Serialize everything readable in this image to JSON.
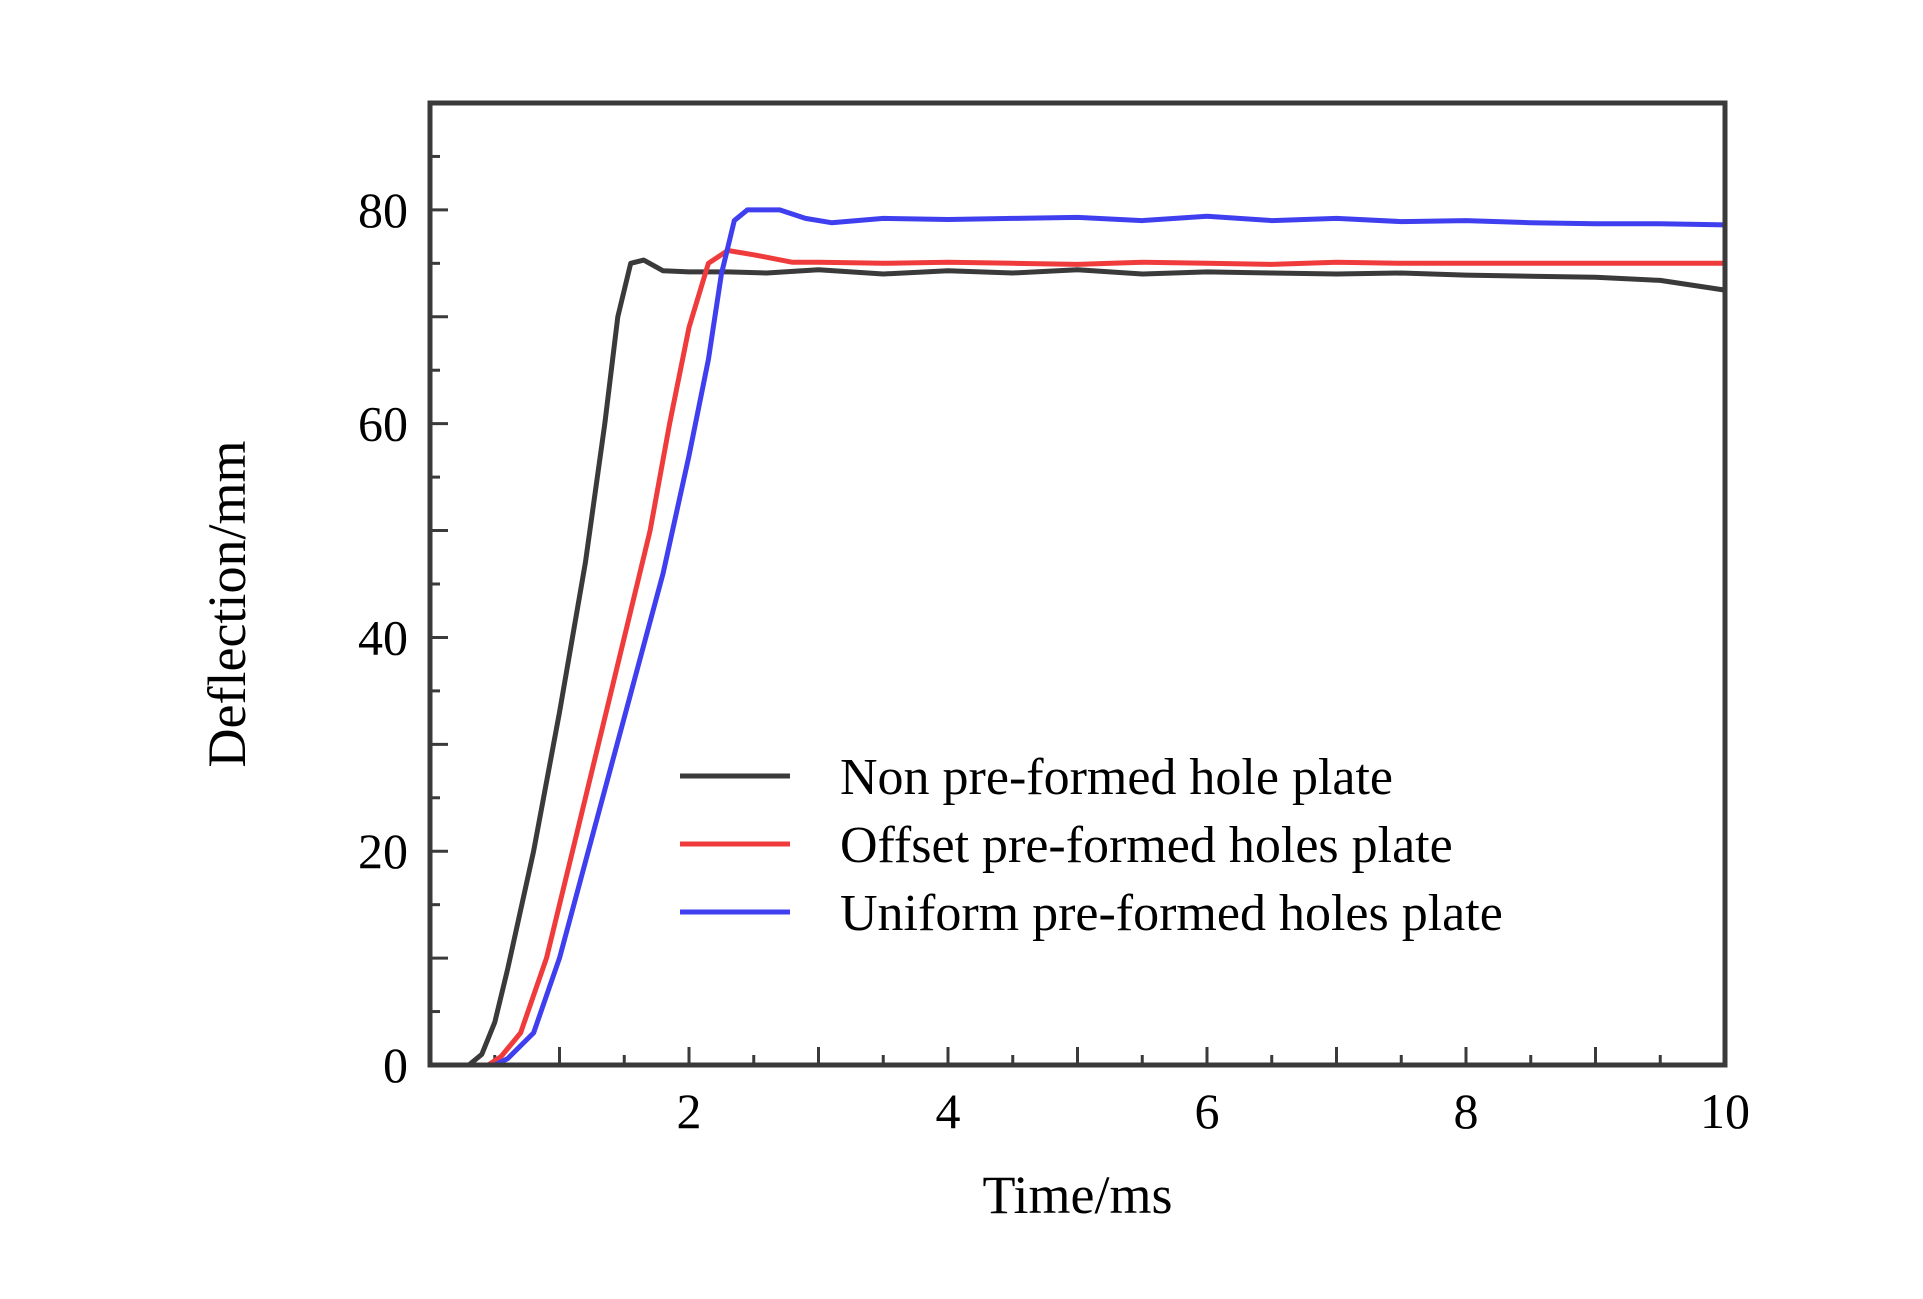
{
  "chart_data": {
    "type": "line",
    "title": "",
    "xlabel": "Time/ms",
    "ylabel": "Deflection/mm",
    "xlim": [
      0,
      10
    ],
    "ylim": [
      0,
      90
    ],
    "x_ticks": [
      2,
      4,
      6,
      8,
      10
    ],
    "y_ticks": [
      0,
      20,
      40,
      60,
      80
    ],
    "grid": false,
    "legend_position": "lower-right",
    "series": [
      {
        "name": "Non pre-formed hole plate",
        "color": "#3a3a3a",
        "points": [
          [
            0,
            0
          ],
          [
            0.3,
            0
          ],
          [
            0.4,
            1
          ],
          [
            0.5,
            4
          ],
          [
            0.6,
            9
          ],
          [
            0.8,
            20
          ],
          [
            1.0,
            33
          ],
          [
            1.2,
            47
          ],
          [
            1.35,
            60
          ],
          [
            1.45,
            70
          ],
          [
            1.55,
            75
          ],
          [
            1.65,
            75.3
          ],
          [
            1.8,
            74.3
          ],
          [
            2.0,
            74.2
          ],
          [
            2.3,
            74.2
          ],
          [
            2.6,
            74.1
          ],
          [
            3.0,
            74.4
          ],
          [
            3.5,
            74.0
          ],
          [
            4.0,
            74.3
          ],
          [
            4.5,
            74.1
          ],
          [
            5.0,
            74.4
          ],
          [
            5.5,
            74.0
          ],
          [
            6.0,
            74.2
          ],
          [
            6.5,
            74.1
          ],
          [
            7.0,
            74.0
          ],
          [
            7.5,
            74.1
          ],
          [
            8.0,
            73.9
          ],
          [
            8.5,
            73.8
          ],
          [
            9.0,
            73.7
          ],
          [
            9.5,
            73.4
          ],
          [
            10.0,
            72.5
          ]
        ]
      },
      {
        "name": "Offset pre-formed holes plate",
        "color": "#ef3b3b",
        "points": [
          [
            0,
            0
          ],
          [
            0.45,
            0
          ],
          [
            0.55,
            0.8
          ],
          [
            0.7,
            3
          ],
          [
            0.9,
            10
          ],
          [
            1.1,
            20
          ],
          [
            1.3,
            30
          ],
          [
            1.5,
            40
          ],
          [
            1.7,
            50
          ],
          [
            1.85,
            60
          ],
          [
            2.0,
            69
          ],
          [
            2.15,
            75
          ],
          [
            2.3,
            76.2
          ],
          [
            2.5,
            75.8
          ],
          [
            2.8,
            75.1
          ],
          [
            3.0,
            75.1
          ],
          [
            3.5,
            75.0
          ],
          [
            4.0,
            75.1
          ],
          [
            4.5,
            75.0
          ],
          [
            5.0,
            74.9
          ],
          [
            5.5,
            75.1
          ],
          [
            6.0,
            75.0
          ],
          [
            6.5,
            74.9
          ],
          [
            7.0,
            75.1
          ],
          [
            7.5,
            75.0
          ],
          [
            8.0,
            75.0
          ],
          [
            9.0,
            75.0
          ],
          [
            10.0,
            75.0
          ]
        ]
      },
      {
        "name": "Uniform pre-formed holes plate",
        "color": "#3f3ff0",
        "points": [
          [
            0,
            0
          ],
          [
            0.5,
            0
          ],
          [
            0.6,
            0.6
          ],
          [
            0.8,
            3
          ],
          [
            1.0,
            10
          ],
          [
            1.2,
            19
          ],
          [
            1.4,
            28
          ],
          [
            1.6,
            37
          ],
          [
            1.8,
            46
          ],
          [
            2.0,
            57
          ],
          [
            2.15,
            66
          ],
          [
            2.25,
            74
          ],
          [
            2.35,
            79
          ],
          [
            2.45,
            80
          ],
          [
            2.7,
            80
          ],
          [
            2.9,
            79.2
          ],
          [
            3.1,
            78.8
          ],
          [
            3.5,
            79.2
          ],
          [
            4.0,
            79.1
          ],
          [
            4.5,
            79.2
          ],
          [
            5.0,
            79.3
          ],
          [
            5.5,
            79.0
          ],
          [
            6.0,
            79.4
          ],
          [
            6.5,
            79.0
          ],
          [
            7.0,
            79.2
          ],
          [
            7.5,
            78.9
          ],
          [
            8.0,
            79.0
          ],
          [
            8.5,
            78.8
          ],
          [
            9.0,
            78.7
          ],
          [
            9.5,
            78.7
          ],
          [
            10.0,
            78.6
          ]
        ]
      }
    ]
  }
}
